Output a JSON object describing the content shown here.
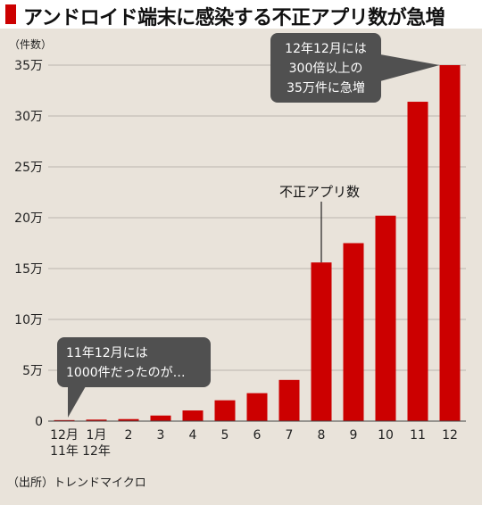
{
  "header": {
    "title": "アンドロイド端末に感染する不正アプリ数が急増"
  },
  "source": "（出所）トレンドマイクロ",
  "colors": {
    "bar": "#cc0000",
    "accent": "#cc0000",
    "callout_bg": "#505050",
    "grid": "#bcb6ae",
    "background": "#e9e3da"
  },
  "chart_data": {
    "type": "bar",
    "y_unit_label": "（件数）",
    "categories": [
      "12月",
      "1月",
      "2",
      "3",
      "4",
      "5",
      "6",
      "7",
      "8",
      "9",
      "10",
      "11",
      "12"
    ],
    "category_sublabels": [
      "11年",
      "12年",
      "",
      "",
      "",
      "",
      "",
      "",
      "",
      "",
      "",
      "",
      ""
    ],
    "values": [
      1000,
      1500,
      2000,
      5500,
      10500,
      20500,
      27500,
      40500,
      156000,
      175000,
      202000,
      314000,
      350000
    ],
    "ylim": [
      0,
      350000
    ],
    "yticks": [
      0,
      50000,
      100000,
      150000,
      200000,
      250000,
      300000,
      350000
    ],
    "ytick_labels": [
      "0",
      "5万",
      "10万",
      "15万",
      "20万",
      "25万",
      "30万",
      "35万"
    ],
    "grid": true,
    "series_label": "不正アプリ数",
    "annotations": [
      {
        "lines": [
          "11年12月には",
          "1000件だったのが…"
        ],
        "target_index": 0
      },
      {
        "lines": [
          "12年12月には",
          "300倍以上の",
          "35万件に急増"
        ],
        "target_index": 12
      }
    ]
  }
}
